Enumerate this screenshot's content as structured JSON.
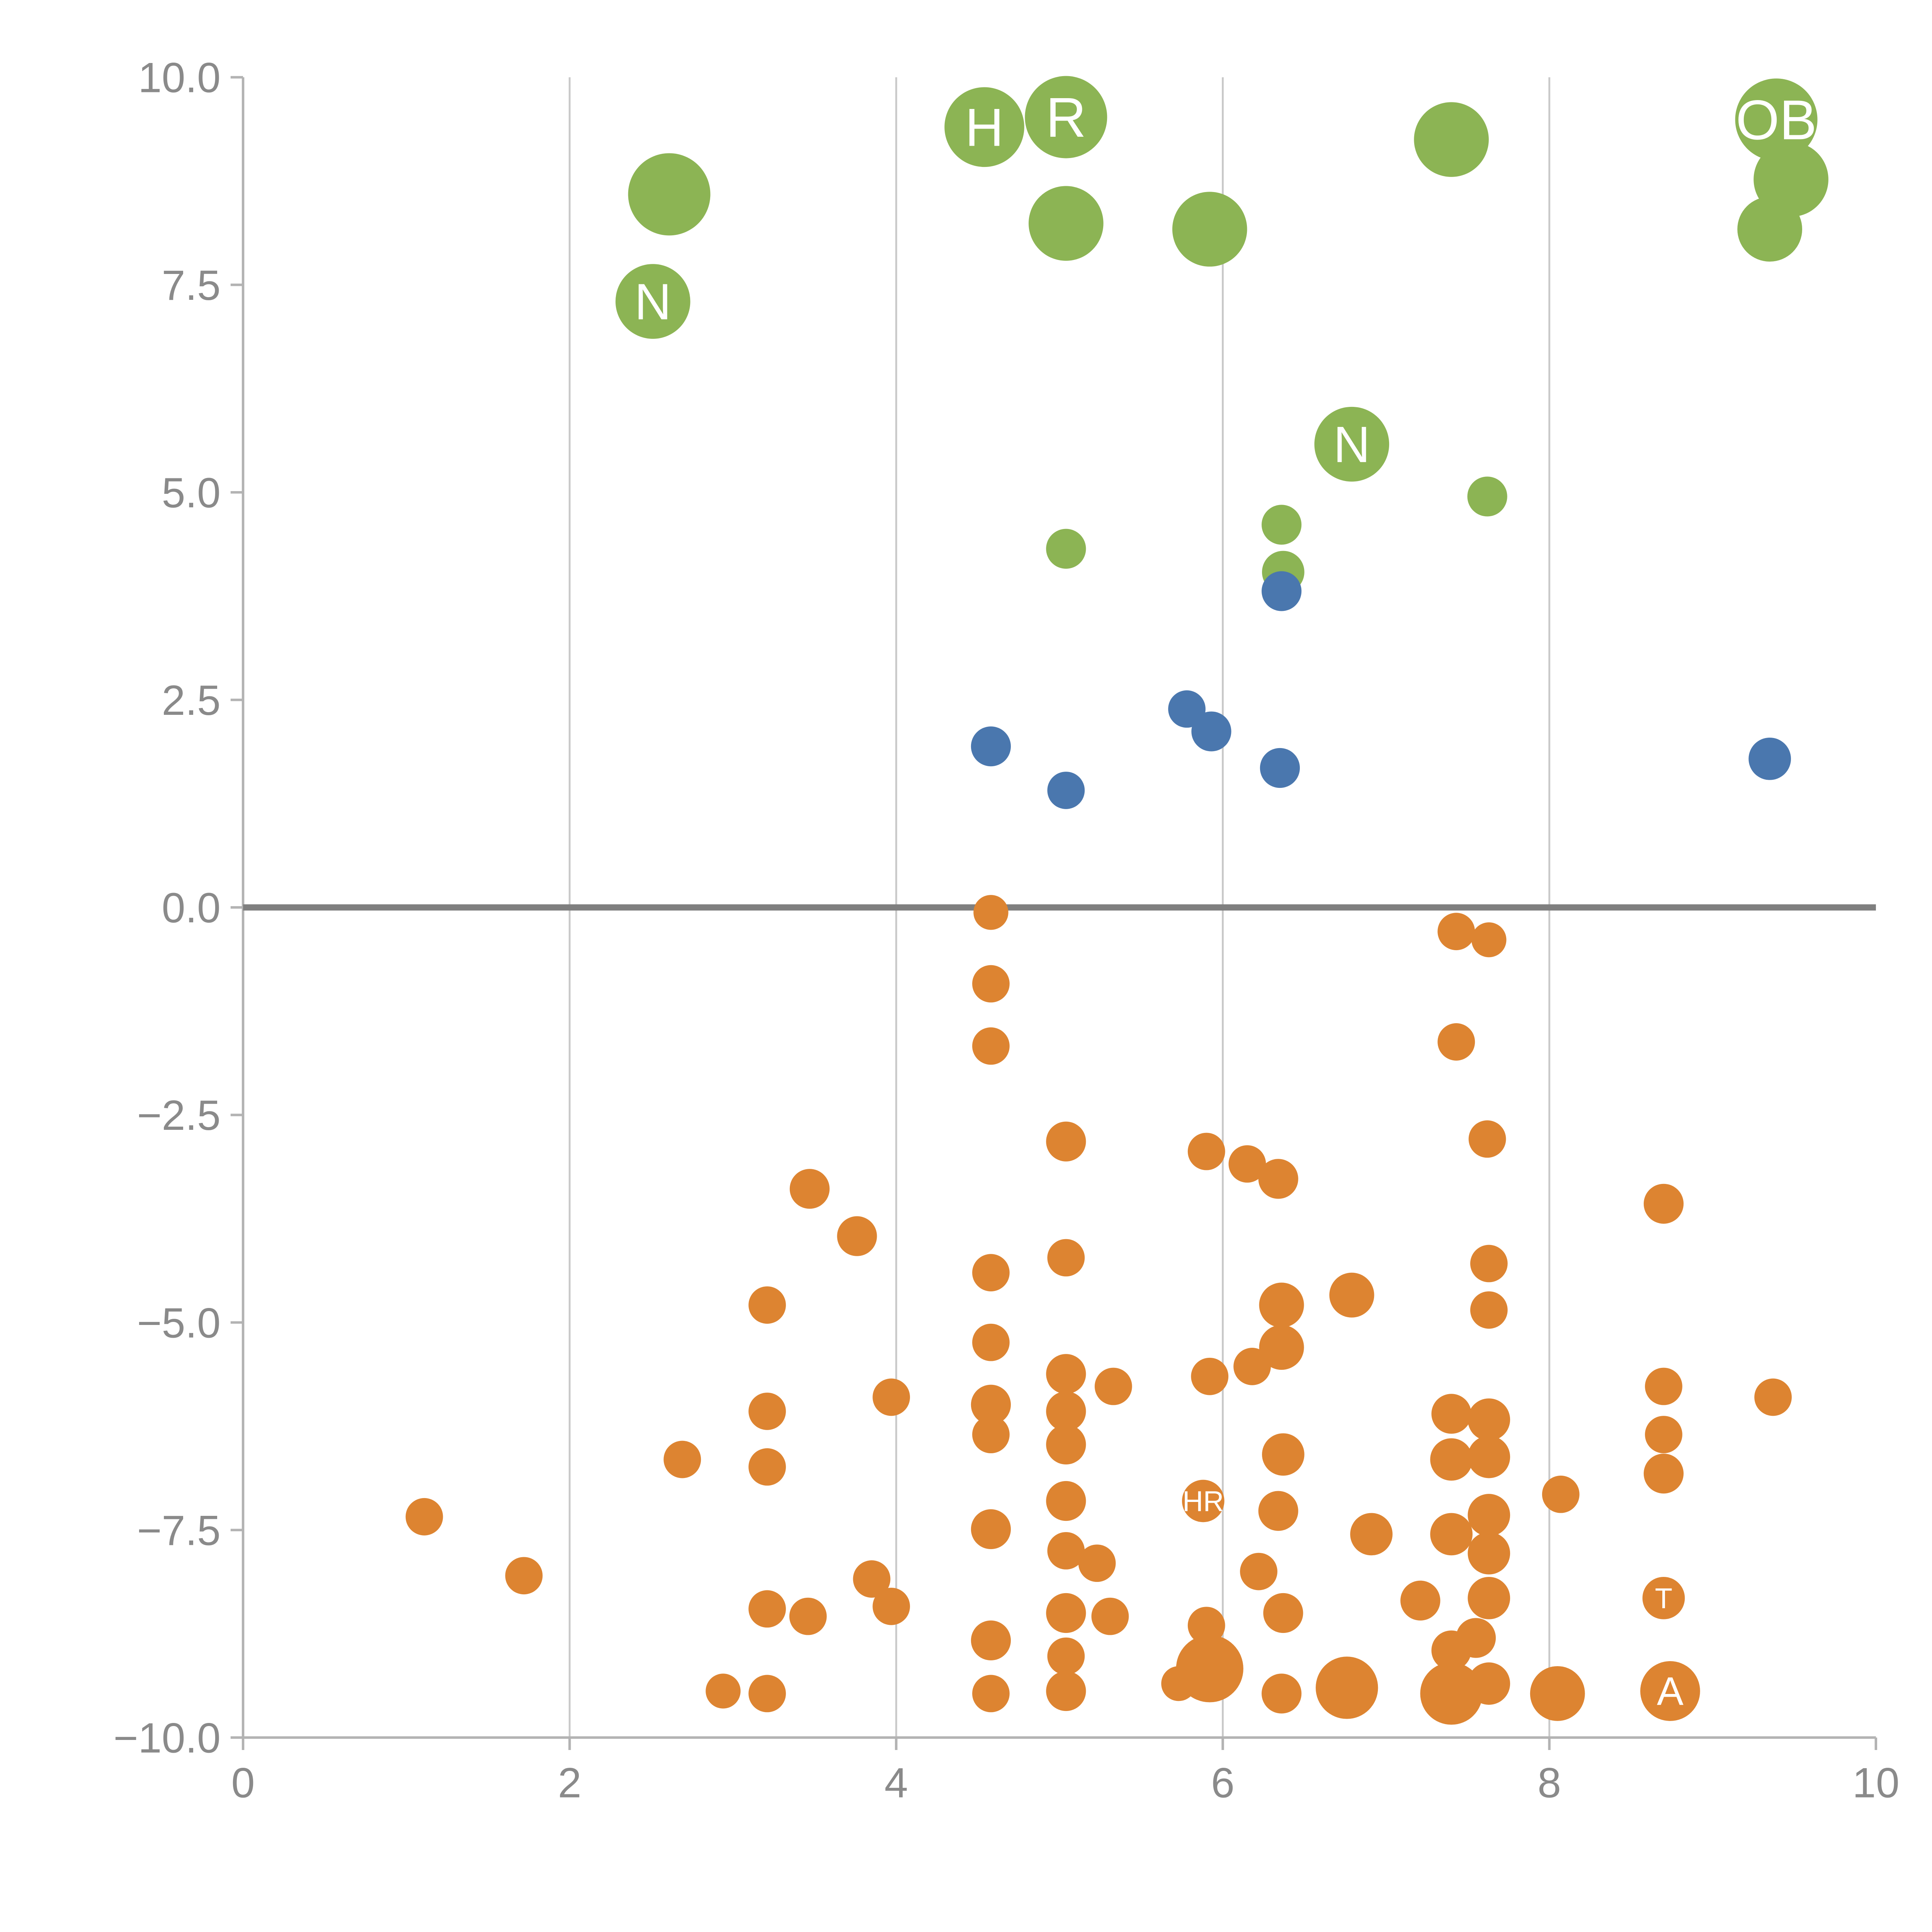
{
  "chart_data": {
    "type": "scatter",
    "title": "",
    "xlabel": "",
    "ylabel": "",
    "xlim": [
      0,
      10
    ],
    "ylim": [
      -10,
      10
    ],
    "x_ticks": [
      0,
      2,
      4,
      6,
      8,
      10
    ],
    "x_tick_labels": [
      "0",
      "2",
      "4",
      "6",
      "8",
      "10"
    ],
    "y_ticks": [
      10,
      7.5,
      5,
      2.5,
      0,
      -2.5,
      -5,
      -7.5,
      -10
    ],
    "y_tick_labels": [
      "10.0",
      "7.5",
      "5.0",
      "2.5",
      "0.0",
      "−2.5",
      "−5.0",
      "−7.5",
      "−10.0"
    ],
    "grid_x": [
      2,
      4,
      6,
      8
    ],
    "grid_on": true,
    "zero_line_y": 0,
    "legend": "none",
    "series": [
      {
        "name": "green",
        "color": "#8cb454",
        "points": [
          [
            2.61,
            8.59,
            33
          ],
          [
            2.51,
            7.3,
            30,
            "N"
          ],
          [
            4.54,
            9.4,
            32,
            "H"
          ],
          [
            5.04,
            9.52,
            33,
            "R"
          ],
          [
            5.04,
            8.24,
            30
          ],
          [
            5.92,
            8.17,
            30
          ],
          [
            7.4,
            9.25,
            30
          ],
          [
            9.39,
            9.49,
            33,
            "OB"
          ],
          [
            9.48,
            8.77,
            30
          ],
          [
            9.35,
            8.17,
            26
          ],
          [
            6.79,
            5.58,
            30,
            "N"
          ],
          [
            7.62,
            4.95,
            16
          ],
          [
            6.36,
            4.61,
            16
          ],
          [
            5.04,
            4.32,
            16
          ],
          [
            6.37,
            4.04,
            17
          ]
        ]
      },
      {
        "name": "blue",
        "color": "#4a77ae",
        "points": [
          [
            6.36,
            3.81,
            16
          ],
          [
            5.78,
            2.39,
            15
          ],
          [
            5.93,
            2.12,
            16
          ],
          [
            4.58,
            1.94,
            16
          ],
          [
            6.35,
            1.68,
            16
          ],
          [
            5.04,
            1.41,
            15
          ],
          [
            9.35,
            1.79,
            17
          ]
        ]
      },
      {
        "name": "orange",
        "color": "#dd8431",
        "points": [
          [
            4.58,
            -0.06,
            14
          ],
          [
            7.43,
            -0.29,
            15
          ],
          [
            7.63,
            -0.39,
            14
          ],
          [
            4.58,
            -0.92,
            15
          ],
          [
            4.58,
            -1.67,
            15
          ],
          [
            7.43,
            -1.62,
            15
          ],
          [
            5.04,
            -2.82,
            16
          ],
          [
            5.9,
            -2.94,
            15
          ],
          [
            6.15,
            -3.09,
            15
          ],
          [
            7.62,
            -2.79,
            15
          ],
          [
            6.34,
            -3.27,
            16
          ],
          [
            3.47,
            -3.39,
            16
          ],
          [
            8.7,
            -3.57,
            16
          ],
          [
            3.76,
            -3.96,
            16
          ],
          [
            5.04,
            -4.22,
            15
          ],
          [
            4.58,
            -4.4,
            15
          ],
          [
            6.79,
            -4.67,
            18
          ],
          [
            7.63,
            -4.29,
            15
          ],
          [
            3.21,
            -4.79,
            15
          ],
          [
            7.63,
            -4.85,
            15
          ],
          [
            6.36,
            -4.79,
            18
          ],
          [
            4.58,
            -5.24,
            15
          ],
          [
            6.36,
            -5.3,
            18
          ],
          [
            6.18,
            -5.53,
            15
          ],
          [
            5.92,
            -5.65,
            15
          ],
          [
            5.04,
            -5.62,
            16
          ],
          [
            5.33,
            -5.77,
            15
          ],
          [
            8.7,
            -5.77,
            15
          ],
          [
            9.37,
            -5.9,
            15
          ],
          [
            3.97,
            -5.9,
            15
          ],
          [
            3.21,
            -6.07,
            15
          ],
          [
            4.58,
            -5.99,
            16
          ],
          [
            5.04,
            -6.07,
            16
          ],
          [
            7.4,
            -6.1,
            16
          ],
          [
            7.63,
            -6.17,
            17
          ],
          [
            4.58,
            -6.35,
            15
          ],
          [
            5.04,
            -6.47,
            16
          ],
          [
            8.7,
            -6.35,
            15
          ],
          [
            7.4,
            -6.65,
            17
          ],
          [
            7.63,
            -6.62,
            17
          ],
          [
            2.69,
            -6.65,
            15
          ],
          [
            3.21,
            -6.74,
            15
          ],
          [
            6.37,
            -6.59,
            17
          ],
          [
            8.7,
            -6.82,
            16
          ],
          [
            5.88,
            -7.15,
            17,
            "HR"
          ],
          [
            5.04,
            -7.15,
            16
          ],
          [
            8.07,
            -7.07,
            15
          ],
          [
            1.11,
            -7.34,
            15
          ],
          [
            6.34,
            -7.27,
            16
          ],
          [
            4.58,
            -7.49,
            16
          ],
          [
            6.91,
            -7.55,
            17
          ],
          [
            7.4,
            -7.55,
            17
          ],
          [
            7.63,
            -7.32,
            17
          ],
          [
            5.04,
            -7.75,
            15
          ],
          [
            5.23,
            -7.9,
            15
          ],
          [
            7.63,
            -7.78,
            17
          ],
          [
            3.85,
            -8.09,
            15
          ],
          [
            1.72,
            -8.05,
            15
          ],
          [
            6.22,
            -8.0,
            15
          ],
          [
            3.97,
            -8.42,
            15
          ],
          [
            7.21,
            -8.35,
            16
          ],
          [
            7.63,
            -8.32,
            17
          ],
          [
            8.7,
            -8.32,
            17,
            "T"
          ],
          [
            3.21,
            -8.45,
            15
          ],
          [
            3.46,
            -8.54,
            15
          ],
          [
            5.04,
            -8.5,
            16
          ],
          [
            5.31,
            -8.54,
            15
          ],
          [
            6.37,
            -8.5,
            16
          ],
          [
            5.9,
            -8.65,
            15
          ],
          [
            4.58,
            -8.83,
            16
          ],
          [
            5.04,
            -9.02,
            15
          ],
          [
            7.4,
            -8.95,
            16
          ],
          [
            7.55,
            -8.8,
            16
          ],
          [
            5.92,
            -9.17,
            27
          ],
          [
            6.76,
            -9.4,
            25
          ],
          [
            7.4,
            -9.47,
            25
          ],
          [
            8.05,
            -9.47,
            22
          ],
          [
            8.74,
            -9.44,
            24,
            "A"
          ],
          [
            2.94,
            -9.44,
            14
          ],
          [
            3.21,
            -9.47,
            15
          ],
          [
            4.58,
            -9.47,
            15
          ],
          [
            5.04,
            -9.44,
            16
          ],
          [
            5.73,
            -9.35,
            14
          ],
          [
            6.36,
            -9.47,
            16
          ],
          [
            7.63,
            -9.35,
            17
          ]
        ]
      }
    ]
  },
  "style": {
    "background": "#ffffff",
    "grid_color": "#c9c9c9",
    "zero_line_color": "#7f7f7f",
    "axis_color": "#b3b3b3",
    "tick_label_color": "#8a8a8a",
    "label_text_color": "#ffffff"
  }
}
